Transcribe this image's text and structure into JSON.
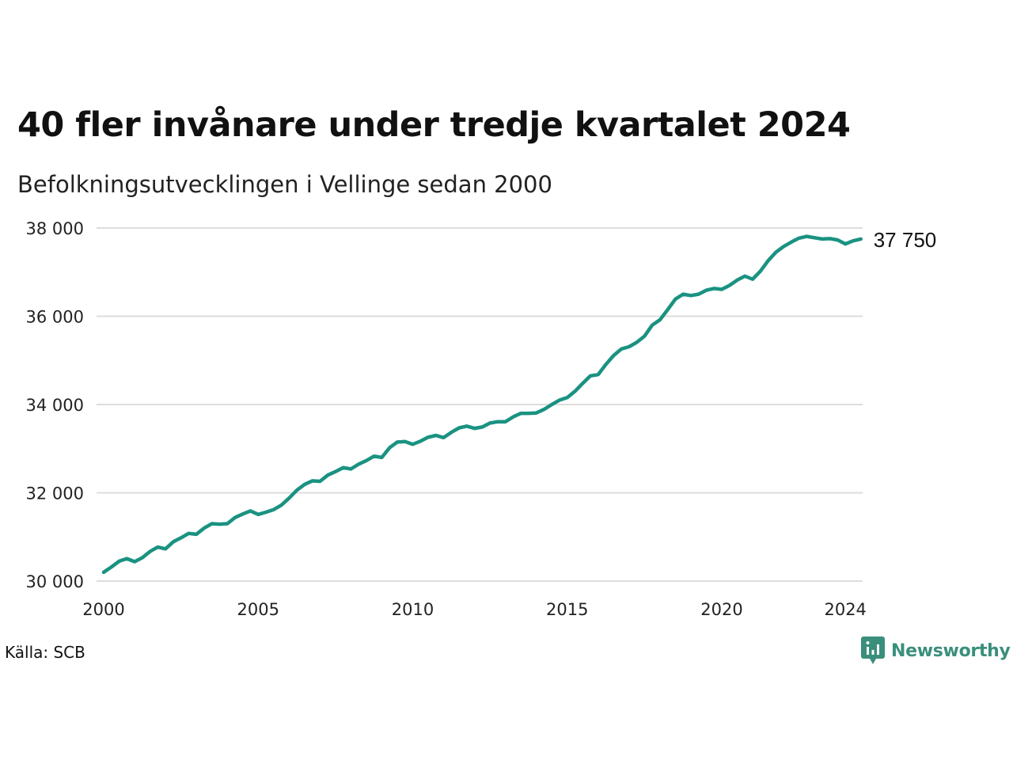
{
  "title": "40 fler invånare under tredje kvartalet 2024",
  "subtitle": "Befolkningsutvecklingen i Vellinge sedan 2000",
  "source": "Källa: SCB",
  "brand": "Newsworthy",
  "colors": {
    "line": "#1a9281",
    "grid": "#dddddd",
    "brand": "#3a8f7c"
  },
  "chart_data": {
    "type": "line",
    "xlabel": "",
    "ylabel": "",
    "ylim": [
      30000,
      38000
    ],
    "xlim": [
      2000,
      2024.5
    ],
    "y_ticks": [
      {
        "value": 30000,
        "label": "30 000"
      },
      {
        "value": 32000,
        "label": "32 000"
      },
      {
        "value": 34000,
        "label": "34 000"
      },
      {
        "value": 36000,
        "label": "36 000"
      },
      {
        "value": 38000,
        "label": "38 000"
      }
    ],
    "x_ticks": [
      {
        "value": 2000,
        "label": "2000"
      },
      {
        "value": 2005,
        "label": "2005"
      },
      {
        "value": 2010,
        "label": "2010"
      },
      {
        "value": 2015,
        "label": "2015"
      },
      {
        "value": 2020,
        "label": "2020"
      },
      {
        "value": 2024,
        "label": "2024"
      }
    ],
    "grid": true,
    "end_label": "37 750",
    "series": [
      {
        "x": [
          "2000K1",
          "2000K2",
          "2000K3",
          "2000K4",
          "2001K1",
          "2001K2",
          "2001K3",
          "2001K4",
          "2002K1",
          "2002K2",
          "2002K3",
          "2002K4",
          "2003K1",
          "2003K2",
          "2003K3",
          "2003K4",
          "2004K1",
          "2004K2",
          "2004K3",
          "2004K4",
          "2005K1",
          "2005K2",
          "2005K3",
          "2005K4",
          "2006K1",
          "2006K2",
          "2006K3",
          "2006K4",
          "2007K1",
          "2007K2",
          "2007K3",
          "2007K4",
          "2008K1",
          "2008K2",
          "2008K3",
          "2008K4",
          "2009K1",
          "2009K2",
          "2009K3",
          "2009K4",
          "2010K1",
          "2010K2",
          "2010K3",
          "2010K4",
          "2011K1",
          "2011K2",
          "2011K3",
          "2011K4",
          "2012K1",
          "2012K2",
          "2012K3",
          "2012K4",
          "2013K1",
          "2013K2",
          "2013K3",
          "2013K4",
          "2014K1",
          "2014K2",
          "2014K3",
          "2014K4",
          "2015K1",
          "2015K2",
          "2015K3",
          "2015K4",
          "2016K1",
          "2016K2",
          "2016K3",
          "2016K4",
          "2017K1",
          "2017K2",
          "2017K3",
          "2017K4",
          "2018K1",
          "2018K2",
          "2018K3",
          "2018K4",
          "2019K1",
          "2019K2",
          "2019K3",
          "2019K4",
          "2020K1",
          "2020K2",
          "2020K3",
          "2020K4",
          "2021K1",
          "2021K2",
          "2021K3",
          "2021K4",
          "2022K1",
          "2022K2",
          "2022K3",
          "2022K4",
          "2023K1",
          "2023K2",
          "2023K3",
          "2023K4",
          "2024K1",
          "2024K2",
          "2024K3"
        ],
        "values": [
          30200,
          30320,
          30450,
          30510,
          30440,
          30530,
          30670,
          30770,
          30730,
          30890,
          30980,
          31080,
          31060,
          31200,
          31300,
          31290,
          31300,
          31440,
          31520,
          31590,
          31510,
          31560,
          31620,
          31720,
          31880,
          32060,
          32190,
          32270,
          32260,
          32400,
          32480,
          32570,
          32540,
          32650,
          32730,
          32830,
          32800,
          33020,
          33150,
          33160,
          33100,
          33170,
          33260,
          33300,
          33250,
          33370,
          33470,
          33510,
          33460,
          33490,
          33580,
          33610,
          33610,
          33720,
          33800,
          33800,
          33810,
          33890,
          34000,
          34100,
          34160,
          34300,
          34480,
          34650,
          34680,
          34910,
          35110,
          35260,
          35310,
          35410,
          35550,
          35800,
          35920,
          36150,
          36390,
          36500,
          36470,
          36500,
          36590,
          36630,
          36610,
          36700,
          36820,
          36910,
          36840,
          37020,
          37260,
          37450,
          37580,
          37680,
          37770,
          37810,
          37780,
          37750,
          37760,
          37730,
          37640,
          37710,
          37750
        ]
      }
    ]
  }
}
